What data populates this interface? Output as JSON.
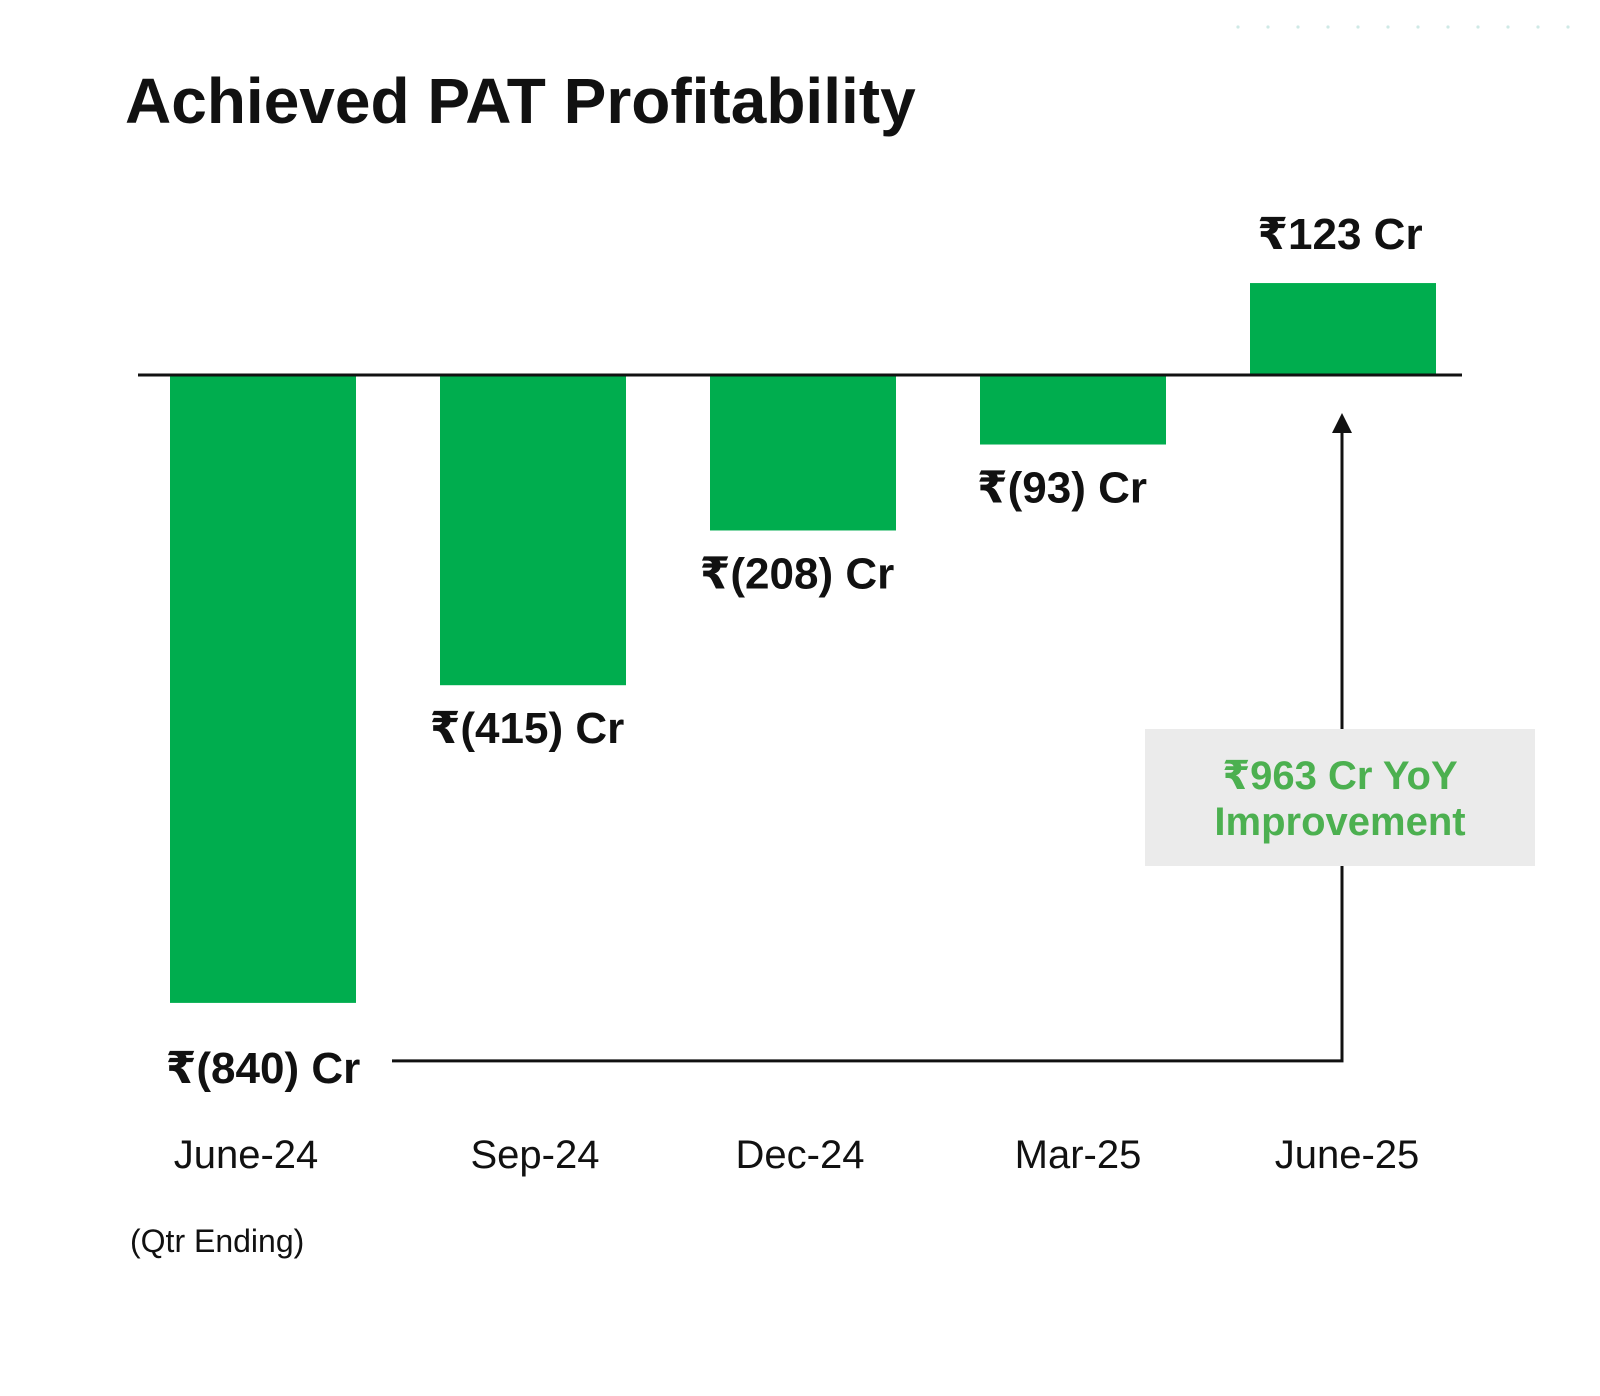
{
  "chart_data": {
    "type": "bar",
    "title": "Achieved PAT Profitability",
    "categories": [
      "June-24",
      "Sep-24",
      "Dec-24",
      "Mar-25",
      "June-25"
    ],
    "values": [
      -840,
      -415,
      -208,
      -93,
      123
    ],
    "value_labels": [
      "₹(840) Cr",
      "₹(415) Cr",
      "₹(208) Cr",
      "₹(93) Cr",
      "₹123 Cr"
    ],
    "xlabel": "(Qtr Ending)",
    "ylabel": "",
    "grid": false,
    "callout": {
      "lines": [
        "₹963 Cr YoY",
        "Improvement"
      ],
      "from_category": "June-24",
      "to_category": "June-25"
    }
  },
  "colors": {
    "bar": "#00AD4E",
    "callout_text": "#4CB050",
    "callout_bg": "#EBEBEB",
    "axis": "#111111",
    "dots": "#CFE9E6"
  }
}
